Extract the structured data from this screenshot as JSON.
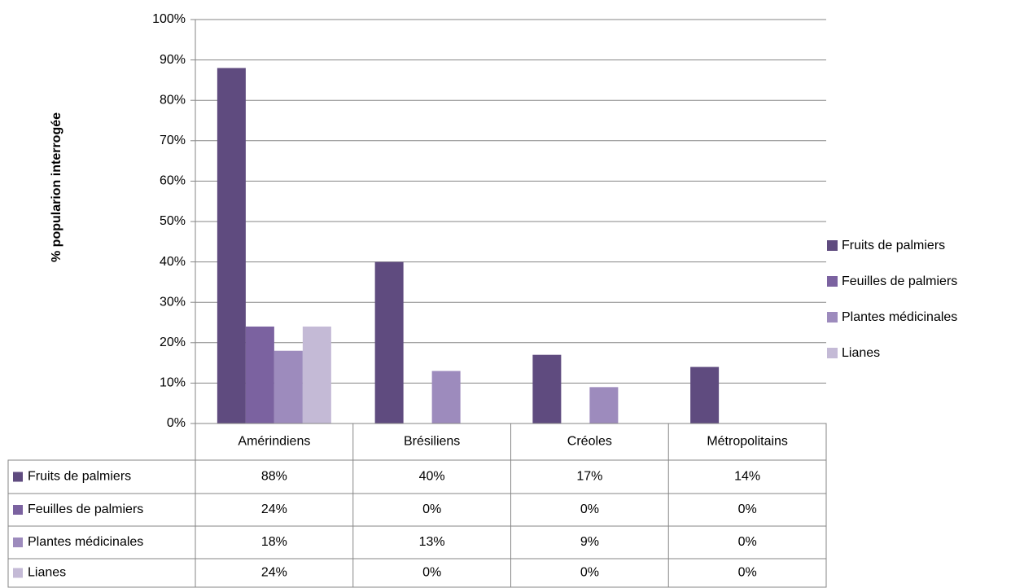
{
  "chart_data": {
    "type": "bar",
    "y_label": "% popularion interrogée",
    "categories": [
      "Amérindiens",
      "Brésiliens",
      "Créoles",
      "Métropolitains"
    ],
    "series": [
      {
        "name": "Fruits de palmiers",
        "color": "#5f4b7f",
        "values": [
          88,
          40,
          17,
          14
        ],
        "value_labels": [
          "88%",
          "40%",
          "17%",
          "14%"
        ]
      },
      {
        "name": "Feuilles de palmiers",
        "color": "#7b62a0",
        "values": [
          24,
          0,
          0,
          0
        ],
        "value_labels": [
          "24%",
          "0%",
          "0%",
          "0%"
        ]
      },
      {
        "name": "Plantes médicinales",
        "color": "#9d8bbd",
        "values": [
          18,
          13,
          9,
          0
        ],
        "value_labels": [
          "18%",
          "13%",
          "9%",
          "0%"
        ]
      },
      {
        "name": "Lianes",
        "color": "#c4bad6",
        "values": [
          24,
          0,
          0,
          0
        ],
        "value_labels": [
          "24%",
          "0%",
          "0%",
          "0%"
        ]
      }
    ],
    "ylim": [
      0,
      100
    ],
    "yticks": [
      {
        "value": 0,
        "label": "0%"
      },
      {
        "value": 10,
        "label": "10%"
      },
      {
        "value": 20,
        "label": "20%"
      },
      {
        "value": 30,
        "label": "30%"
      },
      {
        "value": 40,
        "label": "40%"
      },
      {
        "value": 50,
        "label": "50%"
      },
      {
        "value": 60,
        "label": "60%"
      },
      {
        "value": 70,
        "label": "70%"
      },
      {
        "value": 80,
        "label": "80%"
      },
      {
        "value": 90,
        "label": "90%"
      },
      {
        "value": 100,
        "label": "100%"
      }
    ],
    "grid": true,
    "legend": "right"
  }
}
